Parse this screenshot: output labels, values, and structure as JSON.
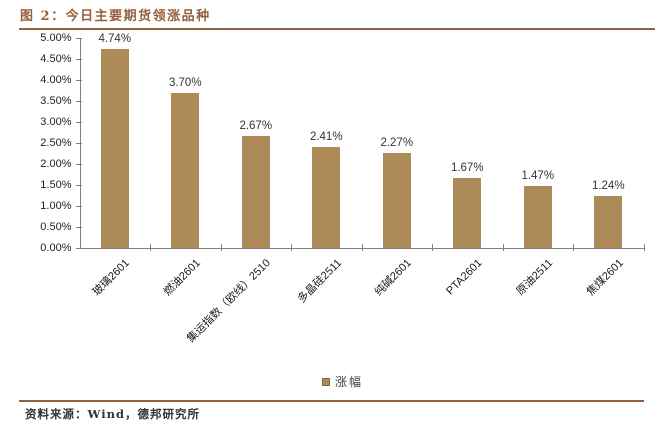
{
  "header": {
    "title": "图 2：今日主要期货领涨品种"
  },
  "footer": {
    "source": "资料来源：Wind，德邦研究所"
  },
  "legend": {
    "label": "涨幅"
  },
  "colors": {
    "bar": "#ac8b59",
    "accent_rule": "#96603c",
    "axis": "#808080",
    "label_text": "#333333"
  },
  "y_axis": {
    "tick_labels": [
      "5.00%",
      "4.50%",
      "4.00%",
      "3.50%",
      "3.00%",
      "2.50%",
      "2.00%",
      "1.50%",
      "1.00%",
      "0.50%",
      "0.00%"
    ]
  },
  "chart_data": {
    "type": "bar",
    "title": "图 2：今日主要期货领涨品种",
    "categories": [
      "玻璃2601",
      "燃油2601",
      "集运指数（欧线）2510",
      "多晶硅2511",
      "纯碱2601",
      "PTA2601",
      "原油2511",
      "焦煤2601"
    ],
    "values": [
      4.74,
      3.7,
      2.67,
      2.41,
      2.27,
      1.67,
      1.47,
      1.24
    ],
    "value_labels": [
      "4.74%",
      "3.70%",
      "2.67%",
      "2.41%",
      "2.27%",
      "1.67%",
      "1.47%",
      "1.24%"
    ],
    "xlabel": "",
    "ylabel": "",
    "ylim": [
      0,
      5
    ],
    "y_tick_step": 0.5,
    "grid": false,
    "legend_entries": [
      "涨幅"
    ],
    "legend_position": "bottom-center",
    "x_label_rotation_deg": -45
  }
}
